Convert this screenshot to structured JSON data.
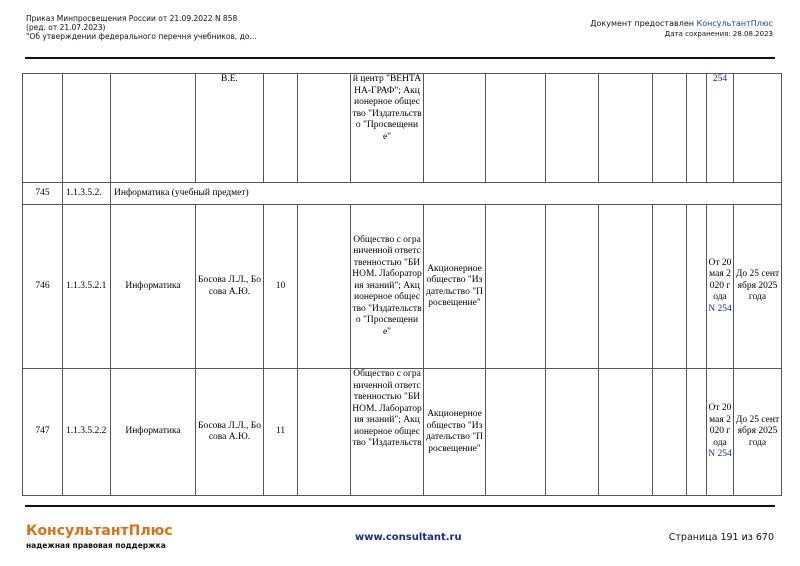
{
  "header": {
    "left_lines": [
      "Приказ Минпросвещения России от 21.09.2022 N 858",
      "(ред. от 21.07.2023)",
      "\"Об утверждении федерального перечня учебников, до..."
    ],
    "provided_prefix": "Документ предоставлен ",
    "provided_brand": "КонсультантПлюс",
    "save_date": "Дата сохранения: 28.08.2023"
  },
  "table": {
    "cont_row": {
      "authors": "В.Е.",
      "publisher": "й центр \"ВЕНТАНА-ГРАФ\"; Акционерное общество \"Издательство \"Просвещение\"",
      "order_num": "254"
    },
    "section_row": {
      "num": "745",
      "code": "1.1.3.5.2.",
      "title": "Информатика (учебный предмет)"
    },
    "rows": [
      {
        "num": "746",
        "code": "1.1.3.5.2.1",
        "name": "Информатика",
        "authors": "Босова Л.Л., Босова А.Ю.",
        "grade": "10",
        "publisher": "Общество с ограниченной ответственностью \"БИНОМ. Лаборатория знаний\"; Акционерное общество \"Издательство \"Просвещение\"",
        "legal": "Акционерное общество \"Издательство \"Просвещение\"",
        "order_prefix": "От 20 мая 2020 года",
        "order_num": "N 254",
        "until": "До 25 сентября 2025 года"
      },
      {
        "num": "747",
        "code": "1.1.3.5.2.2",
        "name": "Информатика",
        "authors": "Босова Л.Л., Босова А.Ю.",
        "grade": "11",
        "publisher": "Общество с ограниченной ответственностью \"БИНОМ. Лаборатория знаний\"; Акционерное общество \"Издательств",
        "legal": "Акционерное общество \"Издательство \"Просвещение\"",
        "order_prefix": "От 20 мая 2020 года",
        "order_num": "N 254",
        "until": "До 25 сентября 2025 года"
      }
    ]
  },
  "footer": {
    "brand": "КонсультантПлюс",
    "tagline": "надежная правовая поддержка",
    "url": "www.consultant.ru",
    "page": "Страница 191 из 670"
  },
  "colors": {
    "brand": "#e06f10",
    "link": "#1a2a9a"
  }
}
